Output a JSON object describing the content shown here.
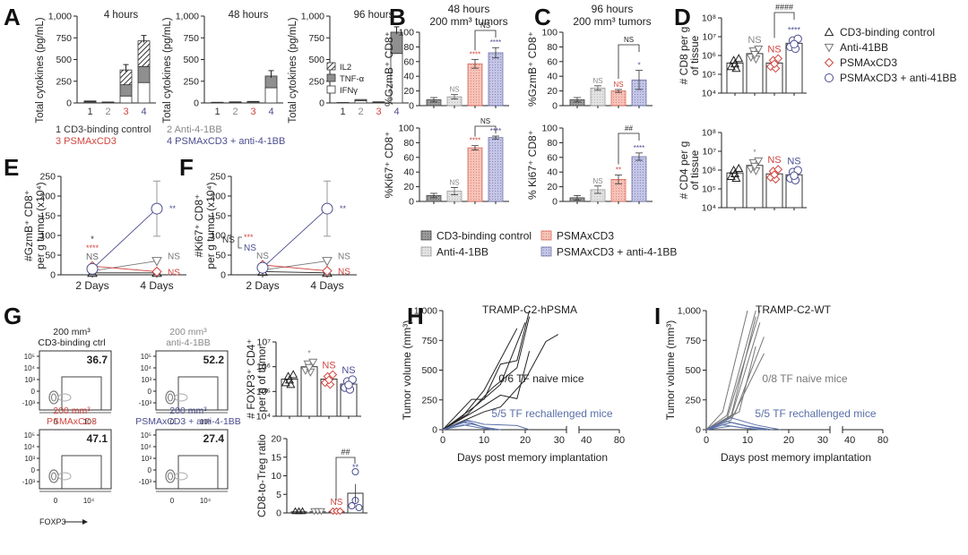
{
  "colors": {
    "group1": "#333333",
    "group2": "#888888",
    "group3": "#d0453f",
    "group4": "#4a4d8f",
    "bar1": "#9a9a9a",
    "bar2": "#dcdcdc",
    "bar3": "#f2b3a8",
    "bar4": "#b8b9dc",
    "rechallenge": "#5a6fa8",
    "naive": "#222222",
    "naiveWT": "#777777"
  },
  "panel_labels": [
    "A",
    "B",
    "C",
    "D",
    "E",
    "F",
    "G",
    "H",
    "I"
  ],
  "chart_data": [
    {
      "id": "A",
      "type": "bar",
      "stacked": true,
      "ylabel": "Total cytokines (pg/mL)",
      "ylim": [
        0,
        1000
      ],
      "yticks": [
        "0",
        "250",
        "500",
        "750",
        "1,000"
      ],
      "categories": [
        "1",
        "2",
        "3",
        "4"
      ],
      "legend": [
        "IL2",
        "TNF-α",
        "IFNγ"
      ],
      "group_legend": [
        "1 CD3-binding control",
        "2 Anti-4-1BB",
        "3 PSMAxCD3",
        "4 PSMAxCD3 + anti-4-1BB"
      ],
      "subplots": [
        {
          "title": "4 hours",
          "series": [
            {
              "name": "IFNγ",
              "values": [
                10,
                4,
                80,
                235
              ]
            },
            {
              "name": "TNF-α",
              "values": [
                8,
                4,
                130,
                185
              ]
            },
            {
              "name": "IL2",
              "values": [
                5,
                3,
                170,
                295
              ]
            }
          ]
        },
        {
          "title": "48 hours",
          "series": [
            {
              "name": "IFNγ",
              "values": [
                5,
                8,
                10,
                175
              ]
            },
            {
              "name": "TNF-α",
              "values": [
                3,
                5,
                8,
                135
              ]
            },
            {
              "name": "IL2",
              "values": [
                0,
                0,
                0,
                0
              ]
            }
          ]
        },
        {
          "title": "96 hours",
          "series": [
            {
              "name": "IFNγ",
              "values": [
                3,
                25,
                8,
                570
              ]
            },
            {
              "name": "TNF-α",
              "values": [
                2,
                15,
                5,
                245
              ]
            },
            {
              "name": "IL2",
              "values": [
                0,
                0,
                0,
                0
              ]
            }
          ]
        }
      ]
    },
    {
      "id": "B",
      "type": "bar",
      "title": "48 hours",
      "subtitle": "200 mm³ tumors",
      "ylim": [
        0,
        100
      ],
      "yticks": [
        "0",
        "20",
        "40",
        "60",
        "80",
        "100"
      ],
      "subplots": [
        {
          "ylabel": "%GzmB⁺ CD8⁺",
          "values": [
            8,
            12,
            57,
            72
          ],
          "errors": [
            3,
            3,
            6,
            7
          ],
          "sig": [
            "",
            "NS",
            "****",
            "****"
          ],
          "bracket": "NS"
        },
        {
          "ylabel": "%Ki67⁺ CD8⁺",
          "values": [
            8,
            14,
            73,
            87
          ],
          "errors": [
            3,
            5,
            3,
            2
          ],
          "sig": [
            "",
            "NS",
            "****",
            "****"
          ],
          "bracket": "NS"
        }
      ]
    },
    {
      "id": "C",
      "type": "bar",
      "title": "96 hours",
      "subtitle": "200 mm³ tumors",
      "ylim": [
        0,
        100
      ],
      "yticks": [
        "0",
        "20",
        "40",
        "60",
        "80",
        "100"
      ],
      "subplots": [
        {
          "ylabel": "%GzmB⁺ CD8⁺",
          "values": [
            8,
            24,
            20,
            35
          ],
          "errors": [
            3,
            3,
            2,
            13
          ],
          "sig": [
            "",
            "NS",
            "NS",
            "*"
          ],
          "bracket": "NS"
        },
        {
          "ylabel": "% Ki67⁺ CD8⁺",
          "values": [
            5,
            16,
            30,
            61
          ],
          "errors": [
            3,
            5,
            6,
            5
          ],
          "sig": [
            "",
            "NS",
            "**",
            "****"
          ],
          "bracket": "##"
        }
      ],
      "legend": [
        "CD3-binding control",
        "Anti-4-1BB",
        "PSMAxCD3",
        "PSMAxCD3 + anti-4-1BB"
      ]
    },
    {
      "id": "D",
      "type": "bar",
      "yscale": "log",
      "ylim_exp": [
        4,
        8
      ],
      "yticks": [
        "10⁴",
        "10⁵",
        "10⁶",
        "10⁷",
        "10⁸"
      ],
      "legend": [
        "CD3-binding control",
        "Anti-41BB",
        "PSMAxCD3",
        "PSMAxCD3 + anti-41BB"
      ],
      "subplots": [
        {
          "ylabel": "# CD8 per g of tissue",
          "values_log10": [
            5.6,
            6.1,
            5.6,
            6.65
          ],
          "sig": [
            "",
            "NS",
            "NS",
            "****"
          ],
          "bracket": "####"
        },
        {
          "ylabel": "# CD4 per g of tissue",
          "values_log10": [
            5.85,
            6.25,
            5.8,
            5.75
          ],
          "sig": [
            "",
            "*",
            "NS",
            "NS"
          ],
          "bracket": ""
        }
      ]
    },
    {
      "id": "E",
      "type": "line",
      "ylabel": "#GzmB⁺ CD8⁺ per g tumor (x10⁴)",
      "ylim": [
        0,
        250
      ],
      "yticks": [
        "0",
        "50",
        "100",
        "150",
        "200",
        "250"
      ],
      "x": [
        "2 Days",
        "4 Days"
      ],
      "series": [
        {
          "name": "CD3-binding control",
          "values": [
            5,
            5
          ]
        },
        {
          "name": "Anti-41BB",
          "values": [
            10,
            35
          ],
          "sig": "NS"
        },
        {
          "name": "PSMAxCD3",
          "values": [
            22,
            8
          ],
          "sig": "NS"
        },
        {
          "name": "PSMAxCD3 + anti-41BB",
          "values": [
            15,
            168
          ],
          "error": 70,
          "sig": "**"
        }
      ],
      "day2_sig": [
        "*",
        "****",
        "NS"
      ]
    },
    {
      "id": "F",
      "type": "line",
      "ylabel": "#Ki67⁺ CD8⁺ per g tumor (x10⁴)",
      "ylim": [
        0,
        250
      ],
      "yticks": [
        "0",
        "50",
        "100",
        "150",
        "200",
        "250"
      ],
      "x": [
        "2 Days",
        "4 Days"
      ],
      "series": [
        {
          "name": "CD3-binding control",
          "values": [
            8,
            5
          ]
        },
        {
          "name": "Anti-41BB",
          "values": [
            12,
            35
          ],
          "sig": "NS"
        },
        {
          "name": "PSMAxCD3",
          "values": [
            25,
            10
          ],
          "sig": "NS"
        },
        {
          "name": "PSMAxCD3 + anti-41BB",
          "values": [
            18,
            168
          ],
          "error": 70,
          "sig": "**"
        }
      ],
      "day2_sig": [
        "***",
        "NS",
        "NS",
        "NS"
      ]
    },
    {
      "id": "G",
      "type": "scatter",
      "flow_plots": [
        {
          "title1": "200 mm³",
          "title2": "CD3-binding ctrl",
          "value": "36.7"
        },
        {
          "title1": "200 mm³",
          "title2": "anti-4-1BB",
          "value": "52.2"
        },
        {
          "title1": "200 mm³",
          "title2": "PSMAxCD3",
          "value": "47.1"
        },
        {
          "title1": "200 mm³",
          "title2": "PSMAxCD3 + anti-4-1BB",
          "value": "27.4"
        }
      ],
      "flow_yticks": [
        "10⁵",
        "10⁴",
        "10³",
        "0",
        "-10³"
      ],
      "flow_xticks": [
        "0",
        "10⁴"
      ],
      "xlabel": "FOXP3",
      "treg": {
        "ylabel": "# FOXP3⁺ CD4⁺ per g of tumor",
        "yticks": [
          "10⁴",
          "10⁵",
          "10⁶",
          "10⁷"
        ],
        "values_log10": [
          5.5,
          6.0,
          5.5,
          5.3
        ],
        "sig": [
          "",
          "*",
          "NS",
          "NS"
        ]
      },
      "ratio": {
        "ylabel": "CD8-to-Treg ratio",
        "yticks": [
          "0",
          "5",
          "10",
          "15",
          "20"
        ],
        "ylim": [
          0,
          20
        ],
        "values": [
          0.3,
          0.3,
          0.3,
          5.3
        ],
        "error": 2.5,
        "sig": [
          "",
          "",
          "NS",
          "**"
        ],
        "bracket": "##"
      }
    },
    {
      "id": "H",
      "type": "line",
      "title": "TRAMP-C2-hPSMA",
      "ylabel": "Tumor volume (mm³)",
      "xlabel": "Days post memory implantation",
      "ylim": [
        0,
        1000
      ],
      "yticks": [
        "0",
        "250",
        "500",
        "750",
        "1,000"
      ],
      "xticks": [
        "0",
        "10",
        "20",
        "30",
        "40",
        "80"
      ],
      "annotation_naive": "0/6 TF naive mice",
      "annotation_rechallenge": "5/5 TF rechallenged mice",
      "naive_series": [
        [
          [
            0,
            0
          ],
          [
            7,
            255
          ],
          [
            10,
            255
          ],
          [
            14,
            550
          ],
          [
            18,
            580
          ],
          [
            21,
            1000
          ]
        ],
        [
          [
            0,
            0
          ],
          [
            5,
            120
          ],
          [
            10,
            330
          ],
          [
            18,
            850
          ]
        ],
        [
          [
            0,
            0
          ],
          [
            6,
            130
          ],
          [
            12,
            350
          ],
          [
            18,
            520
          ],
          [
            21,
            950
          ]
        ],
        [
          [
            0,
            0
          ],
          [
            8,
            200
          ],
          [
            14,
            380
          ],
          [
            20,
            900
          ]
        ],
        [
          [
            0,
            0
          ],
          [
            9,
            180
          ],
          [
            14,
            290
          ],
          [
            18,
            260
          ],
          [
            21,
            660
          ]
        ],
        [
          [
            0,
            0
          ],
          [
            10,
            150
          ],
          [
            14,
            190
          ],
          [
            20,
            420
          ],
          [
            25,
            740
          ],
          [
            28,
            800
          ]
        ]
      ],
      "rechallenge_series": [
        [
          [
            0,
            0
          ],
          [
            6,
            80
          ],
          [
            10,
            45
          ],
          [
            14,
            40
          ],
          [
            18,
            35
          ],
          [
            21,
            0
          ]
        ],
        [
          [
            0,
            0
          ],
          [
            5,
            60
          ],
          [
            8,
            40
          ],
          [
            12,
            0
          ]
        ],
        [
          [
            0,
            0
          ],
          [
            6,
            70
          ],
          [
            9,
            30
          ],
          [
            13,
            0
          ]
        ],
        [
          [
            0,
            0
          ],
          [
            7,
            50
          ],
          [
            10,
            20
          ],
          [
            14,
            0
          ]
        ],
        [
          [
            0,
            0
          ],
          [
            5,
            40
          ],
          [
            9,
            15
          ],
          [
            12,
            0
          ]
        ]
      ]
    },
    {
      "id": "I",
      "type": "line",
      "title": "TRAMP-C2-WT",
      "ylabel": "Tumor volume (mm³)",
      "xlabel": "Days post memory implantation",
      "ylim": [
        0,
        1000
      ],
      "yticks": [
        "0",
        "250",
        "500",
        "750",
        "1,000"
      ],
      "xticks": [
        "0",
        "10",
        "20",
        "30",
        "40",
        "80"
      ],
      "annotation_naive": "0/8 TF naive mice",
      "annotation_rechallenge": "5/5 TF rechallenged mice",
      "naive_series": [
        [
          [
            0,
            0
          ],
          [
            4,
            150
          ],
          [
            10,
            1000
          ]
        ],
        [
          [
            0,
            0
          ],
          [
            5,
            120
          ],
          [
            12,
            1000
          ]
        ],
        [
          [
            0,
            0
          ],
          [
            6,
            110
          ],
          [
            12,
            950
          ]
        ],
        [
          [
            0,
            0
          ],
          [
            5,
            90
          ],
          [
            13,
            1000
          ]
        ],
        [
          [
            0,
            0
          ],
          [
            6,
            100
          ],
          [
            13,
            900
          ]
        ],
        [
          [
            0,
            0
          ],
          [
            7,
            140
          ],
          [
            14,
            780
          ]
        ],
        [
          [
            0,
            0
          ],
          [
            6,
            80
          ],
          [
            14,
            640
          ]
        ],
        [
          [
            0,
            0
          ],
          [
            8,
            150
          ],
          [
            12,
            700
          ]
        ]
      ],
      "rechallenge_series": [
        [
          [
            0,
            0
          ],
          [
            6,
            100
          ],
          [
            12,
            40
          ],
          [
            18,
            0
          ]
        ],
        [
          [
            0,
            0
          ],
          [
            5,
            70
          ],
          [
            10,
            30
          ],
          [
            16,
            0
          ]
        ],
        [
          [
            0,
            0
          ],
          [
            6,
            60
          ],
          [
            11,
            20
          ],
          [
            15,
            0
          ]
        ],
        [
          [
            0,
            0
          ],
          [
            4,
            40
          ],
          [
            9,
            15
          ],
          [
            13,
            0
          ]
        ],
        [
          [
            0,
            0
          ],
          [
            6,
            30
          ],
          [
            10,
            10
          ],
          [
            14,
            0
          ]
        ]
      ]
    }
  ]
}
